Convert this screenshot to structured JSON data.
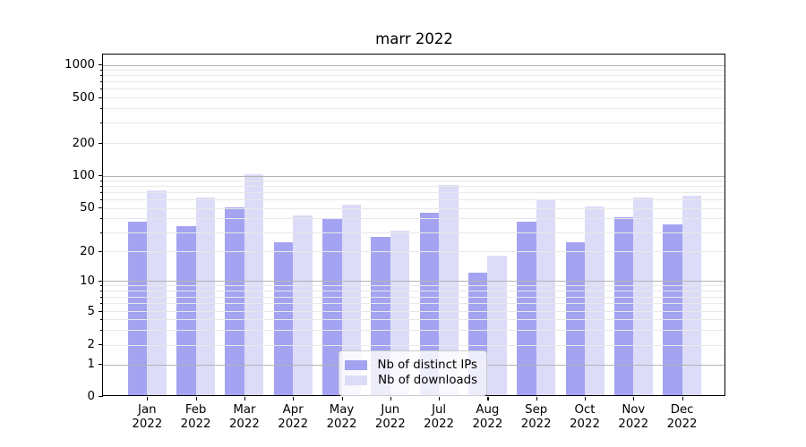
{
  "title": "marr 2022",
  "chart_data": {
    "type": "bar",
    "title": "marr 2022",
    "x_ticklabels": [
      [
        "Jan",
        "2022"
      ],
      [
        "Feb",
        "2022"
      ],
      [
        "Mar",
        "2022"
      ],
      [
        "Apr",
        "2022"
      ],
      [
        "May",
        "2022"
      ],
      [
        "Jun",
        "2022"
      ],
      [
        "Jul",
        "2022"
      ],
      [
        "Aug",
        "2022"
      ],
      [
        "Sep",
        "2022"
      ],
      [
        "Oct",
        "2022"
      ],
      [
        "Nov",
        "2022"
      ],
      [
        "Dec",
        "2022"
      ]
    ],
    "categories": [
      "Jan 2022",
      "Feb 2022",
      "Mar 2022",
      "Apr 2022",
      "May 2022",
      "Jun 2022",
      "Jul 2022",
      "Aug 2022",
      "Sep 2022",
      "Oct 2022",
      "Nov 2022",
      "Dec 2022"
    ],
    "series": [
      {
        "name": "Nb of distinct IPs",
        "color": "#a3a3f1",
        "values": [
          37,
          34,
          51,
          24,
          40,
          27,
          45,
          12,
          37,
          24,
          41,
          35
        ]
      },
      {
        "name": "Nb of downloads",
        "color": "#dcdcf8",
        "values": [
          73,
          62,
          103,
          43,
          54,
          31,
          81,
          18,
          60,
          52,
          63,
          65
        ]
      }
    ],
    "yticks": [
      0,
      1,
      2,
      5,
      10,
      20,
      50,
      100,
      200,
      500,
      1000
    ],
    "ylim": [
      0,
      1260
    ],
    "yscale": "symlog",
    "xlabel": "",
    "ylabel": "",
    "grid": "horizontal, major and minor",
    "legend_position": "lower center",
    "style": {
      "major_grid_color": "#b3b3b3",
      "minor_grid_color": "#e8e8e8",
      "axes_edge_color": "#000000",
      "background_color": "#ffffff"
    }
  }
}
